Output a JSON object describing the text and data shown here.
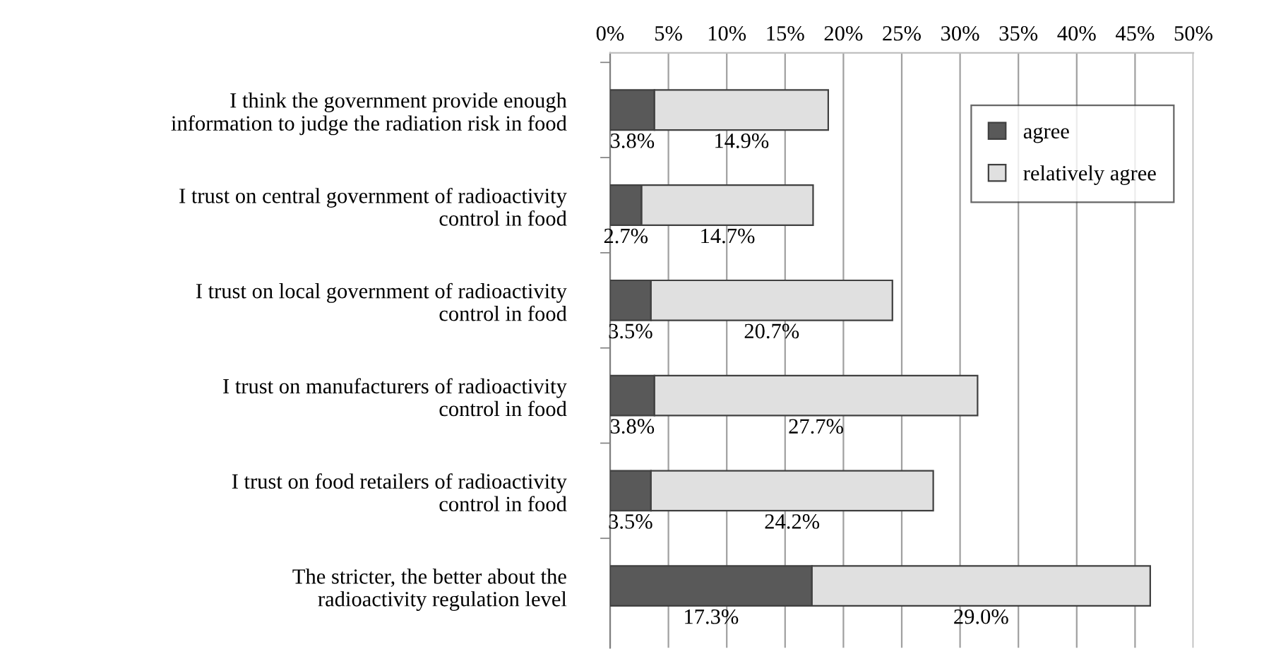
{
  "chart_data": {
    "type": "bar",
    "orientation": "horizontal",
    "stacked": true,
    "categories": [
      "I think the government provide enough\ninformation to judge the radiation risk in food",
      "I trust on central government of radioactivity\ncontrol in food",
      "I trust on local government of radioactivity\ncontrol in food",
      "I trust on manufacturers of radioactivity\ncontrol in food",
      "I trust on food retailers of radioactivity\ncontrol in food",
      "The stricter, the better about the\nradioactivity regulation level"
    ],
    "series": [
      {
        "name": "agree",
        "color": "#595959",
        "values": [
          3.8,
          2.7,
          3.5,
          3.8,
          3.5,
          17.3
        ],
        "value_labels": [
          "3.8%",
          "2.7%",
          "3.5%",
          "3.8%",
          "3.5%",
          "17.3%"
        ]
      },
      {
        "name": "relatively agree",
        "color": "#e0e0e0",
        "values": [
          14.9,
          14.7,
          20.7,
          27.7,
          24.2,
          29.0
        ],
        "value_labels": [
          "14.9%",
          "14.7%",
          "20.7%",
          "27.7%",
          "24.2%",
          "29.0%"
        ]
      }
    ],
    "xlim": [
      0,
      50
    ],
    "xticks": [
      {
        "value": 0,
        "label": "0%"
      },
      {
        "value": 5,
        "label": "5%"
      },
      {
        "value": 10,
        "label": "10%"
      },
      {
        "value": 15,
        "label": "15%"
      },
      {
        "value": 20,
        "label": "20%"
      },
      {
        "value": 25,
        "label": "25%"
      },
      {
        "value": 30,
        "label": "30%"
      },
      {
        "value": 35,
        "label": "35%"
      },
      {
        "value": 40,
        "label": "40%"
      },
      {
        "value": 45,
        "label": "45%"
      },
      {
        "value": 50,
        "label": "50%"
      }
    ],
    "grid": "x",
    "legend": "top right"
  }
}
